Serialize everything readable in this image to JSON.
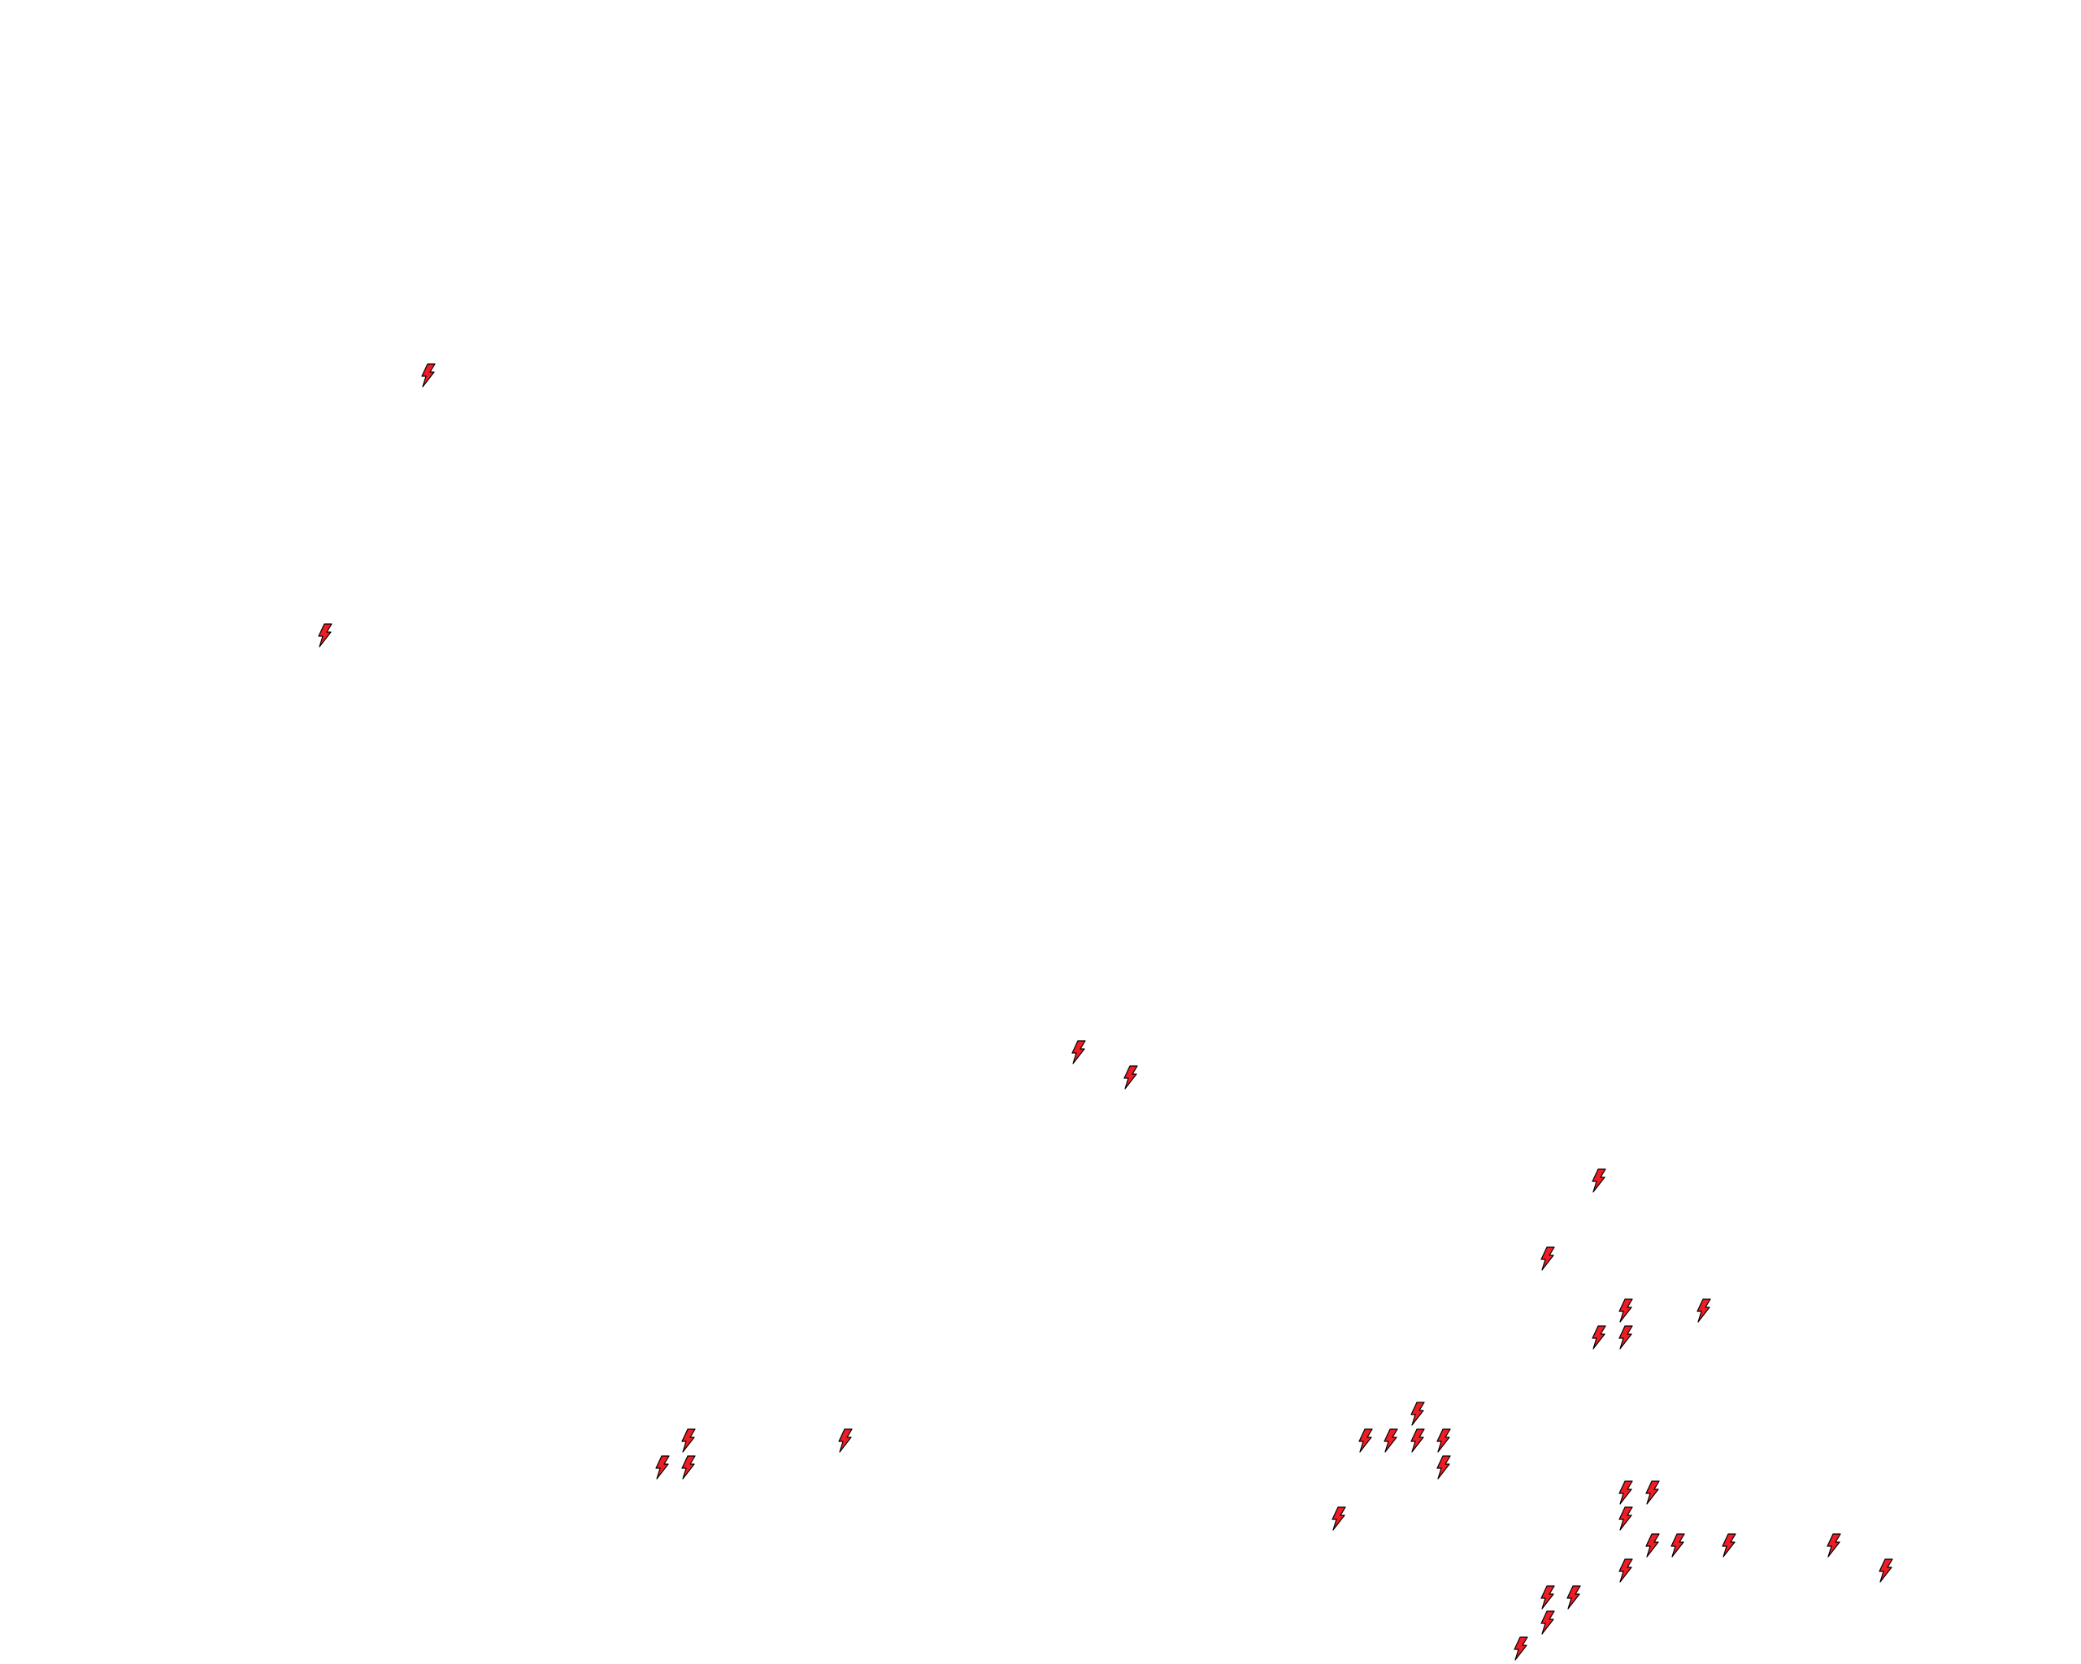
{
  "map": {
    "background_color": "#ffffff",
    "marker": {
      "icon": "lightning-bolt-icon",
      "fill_color": "#ee1c24",
      "stroke_color": "#000000"
    }
  }
}
